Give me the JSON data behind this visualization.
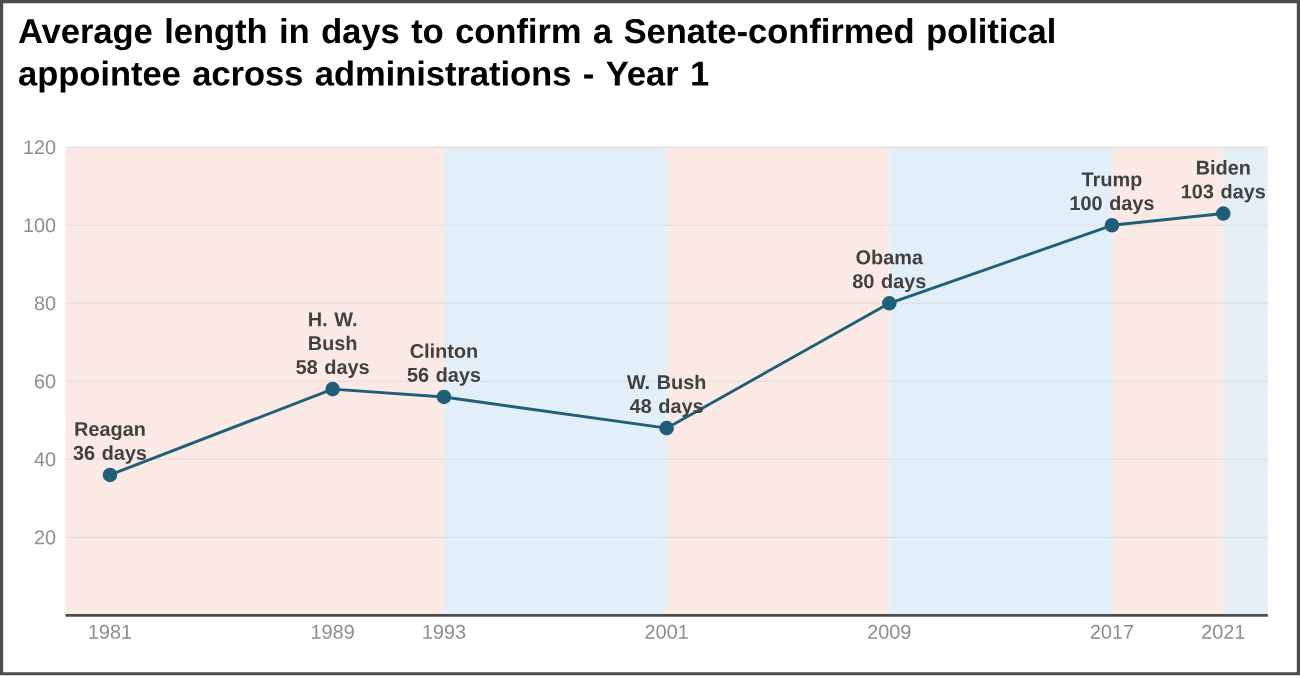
{
  "chart_data": {
    "type": "line",
    "title": "Average length in days to confirm a Senate-confirmed political appointee across administrations - Year 1",
    "x": [
      1981,
      1989,
      1993,
      2001,
      2009,
      2017,
      2021
    ],
    "series": [
      {
        "color": "#1f5f7a",
        "values": [
          36,
          58,
          56,
          48,
          80,
          100,
          103
        ]
      }
    ],
    "xlim": [
      1979.4,
      2022.6
    ],
    "xticks": [
      1981,
      1989,
      1993,
      2001,
      2009,
      2017,
      2021
    ],
    "ylim": [
      0,
      120
    ],
    "yticks": [
      20,
      40,
      60,
      80,
      100,
      120
    ],
    "grid": "y",
    "marker": "circle",
    "line_style": "solid",
    "bands": [
      {
        "axis": "x",
        "from": 1979.4,
        "to": 1993,
        "color": "#fbe9e5"
      },
      {
        "axis": "x",
        "from": 1993,
        "to": 2001,
        "color": "#e2eff9"
      },
      {
        "axis": "x",
        "from": 2001,
        "to": 2009,
        "color": "#fbe9e5"
      },
      {
        "axis": "x",
        "from": 2009,
        "to": 2017,
        "color": "#e2eff9"
      },
      {
        "axis": "x",
        "from": 2017,
        "to": 2021,
        "color": "#fbe9e5"
      },
      {
        "axis": "x",
        "from": 2021,
        "to": 2022.6,
        "color": "#e4eef4"
      }
    ],
    "annotations": [
      {
        "text": "Reagan 36 days",
        "x": 1981,
        "y": 36
      },
      {
        "text": "H. W. Bush 58 days",
        "x": 1989,
        "y": 58
      },
      {
        "text": "Clinton 56 days",
        "x": 1993,
        "y": 56
      },
      {
        "text": "W. Bush 48 days",
        "x": 2001,
        "y": 48
      },
      {
        "text": "Obama 80 days",
        "x": 2009,
        "y": 80
      },
      {
        "text": "Trump 100 days",
        "x": 2017,
        "y": 100
      },
      {
        "text": "Biden 103 days",
        "x": 2021,
        "y": 103
      }
    ]
  }
}
